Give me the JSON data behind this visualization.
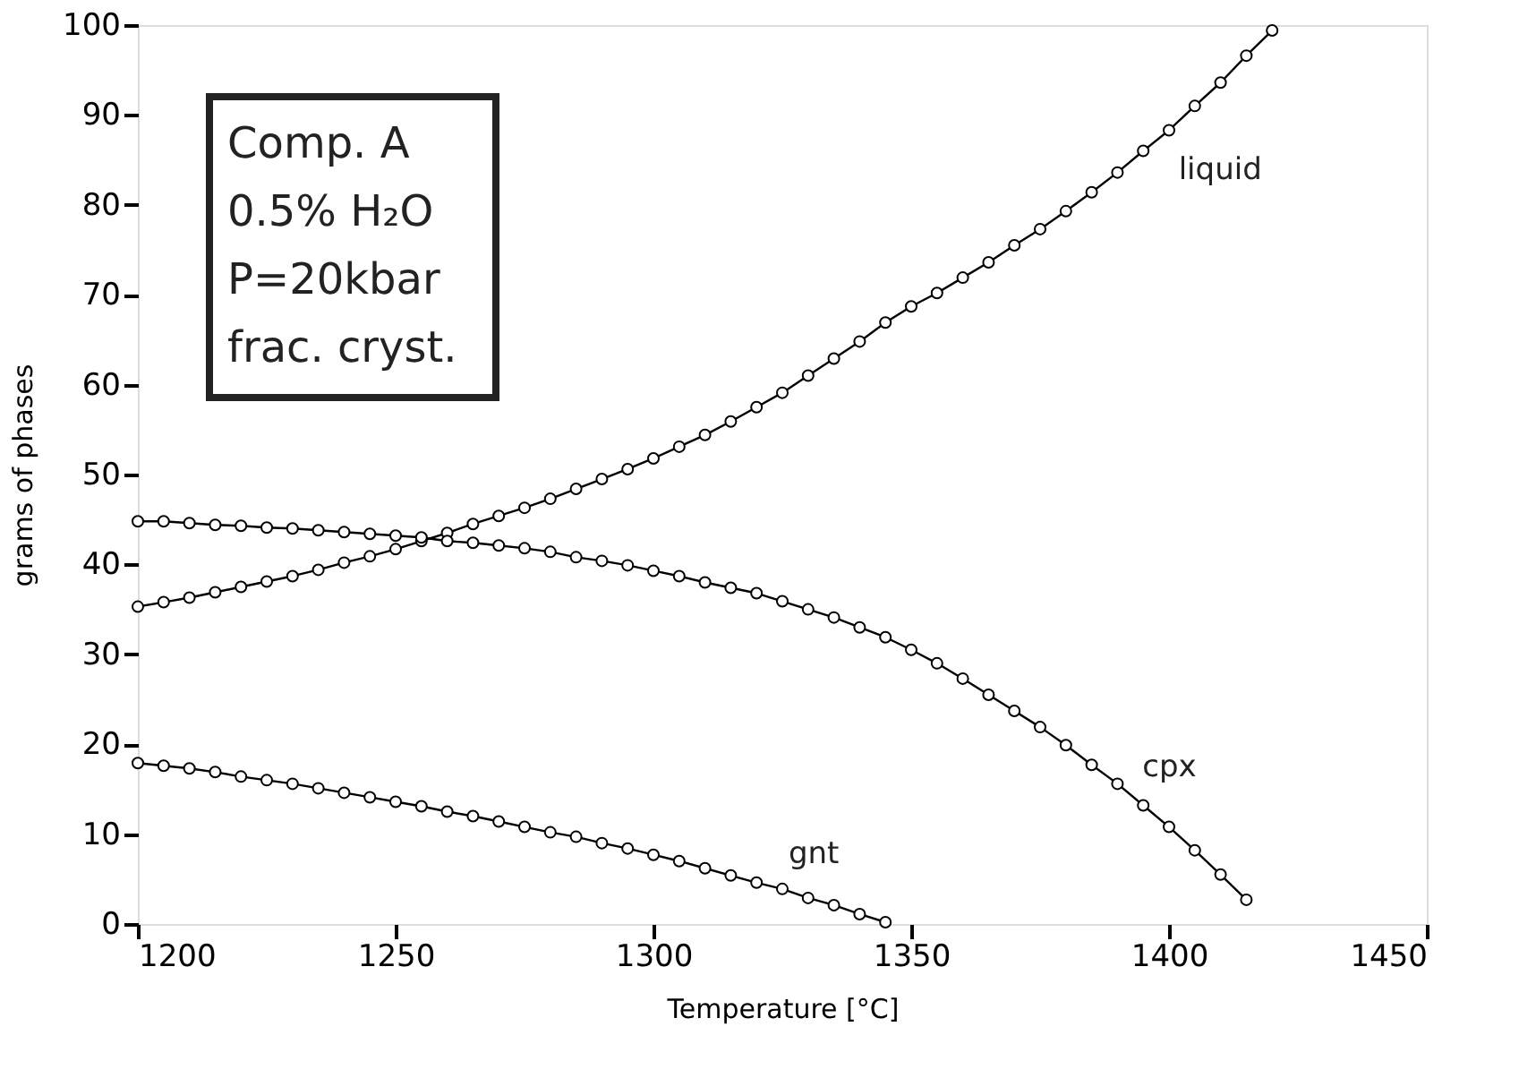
{
  "chart_data": {
    "type": "line",
    "xlabel": "Temperature [°C]",
    "ylabel": "grams of phases",
    "xlim": [
      1200,
      1450
    ],
    "xticks": [
      1200,
      1250,
      1300,
      1350,
      1400,
      1450
    ],
    "ylim": [
      0,
      100
    ],
    "yticks": [
      0,
      10,
      20,
      30,
      40,
      50,
      60,
      70,
      80,
      90,
      100
    ],
    "grid": false,
    "marker": "circle",
    "line_style": "solid",
    "series": [
      {
        "name": "liquid",
        "color": "#000000",
        "x": [
          1200,
          1205,
          1210,
          1215,
          1220,
          1225,
          1230,
          1235,
          1240,
          1245,
          1250,
          1255,
          1260,
          1265,
          1270,
          1275,
          1280,
          1285,
          1290,
          1295,
          1300,
          1305,
          1310,
          1315,
          1320,
          1325,
          1330,
          1335,
          1340,
          1345,
          1350,
          1355,
          1360,
          1365,
          1370,
          1375,
          1380,
          1385,
          1390,
          1395,
          1400,
          1405,
          1410,
          1415,
          1420
        ],
        "values": [
          35.3,
          35.8,
          36.3,
          36.9,
          37.5,
          38.1,
          38.7,
          39.4,
          40.2,
          40.9,
          41.7,
          42.6,
          43.5,
          44.5,
          45.4,
          46.3,
          47.3,
          48.4,
          49.5,
          50.6,
          51.8,
          53.1,
          54.4,
          55.9,
          57.5,
          59.1,
          61.0,
          62.9,
          64.8,
          66.9,
          68.7,
          70.2,
          71.9,
          73.6,
          75.5,
          77.3,
          79.3,
          81.4,
          83.6,
          86.0,
          88.3,
          91.0,
          93.6,
          96.6,
          99.4
        ]
      },
      {
        "name": "cpx",
        "color": "#000000",
        "x": [
          1200,
          1205,
          1210,
          1215,
          1220,
          1225,
          1230,
          1235,
          1240,
          1245,
          1250,
          1255,
          1260,
          1265,
          1270,
          1275,
          1280,
          1285,
          1290,
          1295,
          1300,
          1305,
          1310,
          1315,
          1320,
          1325,
          1330,
          1335,
          1340,
          1345,
          1350,
          1355,
          1360,
          1365,
          1370,
          1375,
          1380,
          1385,
          1390,
          1395,
          1400,
          1405,
          1410,
          1415
        ],
        "values": [
          44.8,
          44.8,
          44.6,
          44.4,
          44.3,
          44.1,
          44.0,
          43.8,
          43.6,
          43.4,
          43.2,
          43.0,
          42.6,
          42.4,
          42.1,
          41.8,
          41.4,
          40.8,
          40.4,
          39.9,
          39.3,
          38.7,
          38.0,
          37.4,
          36.8,
          35.9,
          35.0,
          34.1,
          33.0,
          31.9,
          30.5,
          29.0,
          27.3,
          25.5,
          23.7,
          21.9,
          19.9,
          17.7,
          15.6,
          13.2,
          10.8,
          8.2,
          5.5,
          2.7
        ]
      },
      {
        "name": "gnt",
        "color": "#000000",
        "x": [
          1200,
          1205,
          1210,
          1215,
          1220,
          1225,
          1230,
          1235,
          1240,
          1245,
          1250,
          1255,
          1260,
          1265,
          1270,
          1275,
          1280,
          1285,
          1290,
          1295,
          1300,
          1305,
          1310,
          1315,
          1320,
          1325,
          1330,
          1335,
          1340,
          1345
        ],
        "values": [
          17.9,
          17.6,
          17.3,
          16.9,
          16.4,
          16.0,
          15.6,
          15.1,
          14.6,
          14.1,
          13.6,
          13.1,
          12.5,
          12.0,
          11.4,
          10.8,
          10.2,
          9.7,
          9.0,
          8.4,
          7.7,
          7.0,
          6.2,
          5.4,
          4.6,
          3.9,
          2.9,
          2.1,
          1.1,
          0.2
        ]
      }
    ],
    "annotations": [
      "Comp. A",
      "0.5% H₂O",
      "P=20kbar",
      "frac. cryst."
    ]
  }
}
